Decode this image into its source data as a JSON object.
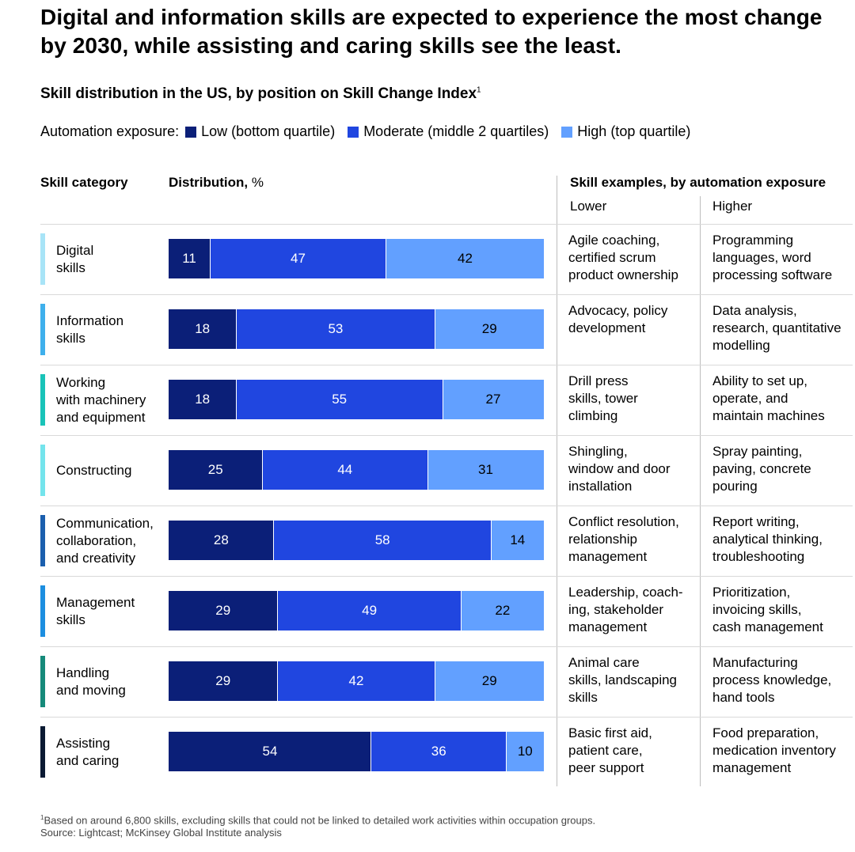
{
  "title": "Digital and information skills are expected to experience the most change by 2030, while assisting and caring skills see the least.",
  "subtitle": "Skill distribution in the US, by position on Skill Change Index",
  "subtitle_sup": "1",
  "legend": {
    "label": "Automation exposure:",
    "items": [
      {
        "label": "Low (bottom quartile)",
        "color": "#0b1f78"
      },
      {
        "label": "Moderate (middle 2 quartiles)",
        "color": "#2046e0"
      },
      {
        "label": "High (top quartile)",
        "color": "#62a0ff"
      }
    ]
  },
  "columns": {
    "category": "Skill category",
    "distribution": "Distribution,",
    "distribution_unit": "%",
    "examples": "Skill examples, by automation exposure",
    "lower": "Lower",
    "higher": "Higher"
  },
  "chart_data": {
    "type": "bar",
    "orientation": "horizontal",
    "stacked": true,
    "title": "Skill distribution in the US, by position on Skill Change Index",
    "xlabel": "Distribution, %",
    "xlim": [
      0,
      100
    ],
    "categories": [
      "Digital skills",
      "Information skills",
      "Working with machinery and equipment",
      "Constructing",
      "Communication, collaboration, and creativity",
      "Management skills",
      "Handling and moving",
      "Assisting and caring"
    ],
    "series": [
      {
        "name": "Low (bottom quartile)",
        "values": [
          11,
          18,
          18,
          25,
          28,
          29,
          29,
          54
        ]
      },
      {
        "name": "Moderate (middle 2 quartiles)",
        "values": [
          47,
          53,
          55,
          44,
          58,
          49,
          42,
          36
        ]
      },
      {
        "name": "High (top quartile)",
        "values": [
          42,
          29,
          27,
          31,
          14,
          22,
          29,
          10
        ]
      }
    ]
  },
  "rows": [
    {
      "label": [
        "Digital",
        "skills"
      ],
      "accent": "#a8e4f7",
      "lower": [
        "Agile coaching,",
        "certified scrum",
        "product ownership"
      ],
      "higher": [
        "Programming",
        "languages, word",
        "processing software"
      ]
    },
    {
      "label": [
        "Information",
        "skills"
      ],
      "accent": "#3fb0ec",
      "lower": [
        "Advocacy, policy",
        "development"
      ],
      "higher": [
        "Data analysis,",
        "research, quantitative",
        "modelling"
      ]
    },
    {
      "label": [
        "Working",
        "with machinery",
        "and equipment"
      ],
      "accent": "#19c3b8",
      "lower": [
        "Drill press",
        "skills, tower",
        "climbing"
      ],
      "higher": [
        "Ability to set up,",
        "operate, and",
        "maintain machines"
      ]
    },
    {
      "label": [
        "Constructing"
      ],
      "accent": "#74e4ec",
      "lower": [
        "Shingling,",
        "window and door",
        "installation"
      ],
      "higher": [
        "Spray painting,",
        "paving, concrete",
        "pouring"
      ]
    },
    {
      "label": [
        "Communication,",
        "collaboration,",
        "and creativity"
      ],
      "accent": "#1b5fae",
      "lower": [
        "Conflict resolution,",
        "relationship",
        "management"
      ],
      "higher": [
        "Report writing,",
        "analytical thinking,",
        "troubleshooting"
      ]
    },
    {
      "label": [
        "Management",
        "skills"
      ],
      "accent": "#1c8ee0",
      "lower": [
        "Leadership, coach-",
        "ing, stakeholder",
        "management"
      ],
      "higher": [
        "Prioritization,",
        "invoicing skills,",
        "cash management"
      ]
    },
    {
      "label": [
        "Handling",
        "and moving"
      ],
      "accent": "#168a7a",
      "lower": [
        "Animal care",
        "skills, landscaping",
        "skills"
      ],
      "higher": [
        "Manufacturing",
        "process knowledge,",
        "hand tools"
      ]
    },
    {
      "label": [
        "Assisting",
        "and caring"
      ],
      "accent": "#0b1a33",
      "lower": [
        "Basic first aid,",
        "patient care,",
        "peer support"
      ],
      "higher": [
        "Food preparation,",
        "medication inventory",
        "management"
      ]
    }
  ],
  "footnote": {
    "sup": "1",
    "text": "Based on around 6,800 skills, excluding skills that could not be linked to detailed work activities within occupation groups.",
    "source": "Source: Lightcast; McKinsey Global Institute analysis"
  }
}
